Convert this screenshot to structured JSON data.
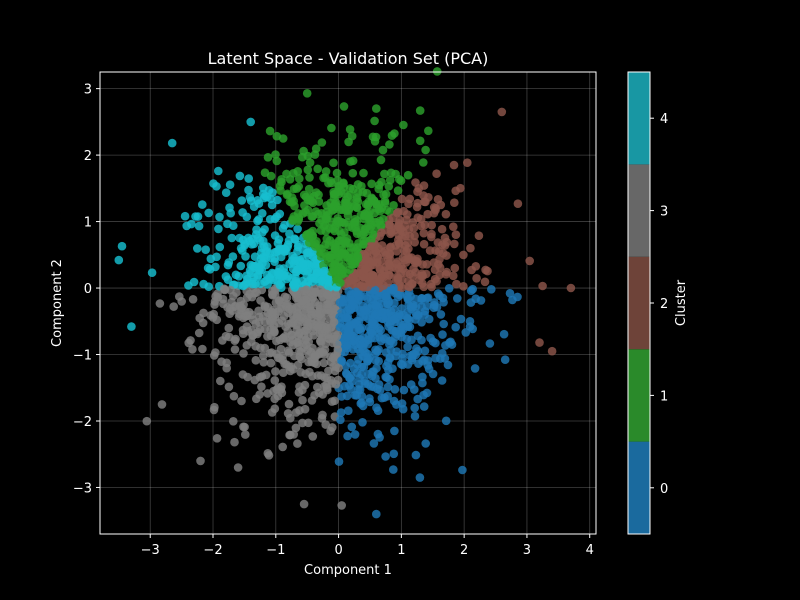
{
  "chart_data": {
    "type": "scatter",
    "title": "Latent Space - Validation Set (PCA)",
    "xlabel": "Component 1",
    "ylabel": "Component 2",
    "xlim": [
      -3.8,
      4.1
    ],
    "ylim": [
      -3.7,
      3.25
    ],
    "xticks": [
      -3,
      -2,
      -1,
      0,
      1,
      2,
      3,
      4
    ],
    "yticks": [
      -3,
      -2,
      -1,
      0,
      1,
      2,
      3
    ],
    "xtick_labels": [
      "−3",
      "−2",
      "−1",
      "0",
      "1",
      "2",
      "3",
      "4"
    ],
    "ytick_labels": [
      "−3",
      "−2",
      "−1",
      "0",
      "1",
      "2",
      "3"
    ],
    "grid": true,
    "colorbar": {
      "label": "Cluster",
      "ticks": [
        "0",
        "1",
        "2",
        "3",
        "4"
      ],
      "colors": [
        "#1a6a9e",
        "#2a8a2a",
        "#6e4339",
        "#676767",
        "#1897a3"
      ]
    },
    "series": [
      {
        "cluster": 0,
        "color": "#1f77b4",
        "center": [
          0.85,
          -1.05
        ],
        "angle_range_deg": [
          -90,
          0
        ]
      },
      {
        "cluster": 1,
        "color": "#2ca02c",
        "center": [
          0.0,
          1.35
        ],
        "angle_range_deg": [
          54,
          126
        ]
      },
      {
        "cluster": 2,
        "color": "#8c564b",
        "center": [
          1.45,
          0.75
        ],
        "angle_range_deg": [
          -25,
          54
        ]
      },
      {
        "cluster": 3,
        "color": "#7f7f7f",
        "center": [
          -0.85,
          -1.05
        ],
        "angle_range_deg": [
          180,
          270
        ]
      },
      {
        "cluster": 4,
        "color": "#17becf",
        "center": [
          -1.45,
          0.75
        ],
        "angle_range_deg": [
          126,
          205
        ]
      }
    ],
    "marked_points": [
      {
        "x": -3.45,
        "y": 0.63,
        "cluster": 4
      },
      {
        "x": -3.5,
        "y": 0.42,
        "cluster": 4
      },
      {
        "x": -3.3,
        "y": -0.58,
        "cluster": 4
      },
      {
        "x": -2.65,
        "y": 2.18,
        "cluster": 4
      },
      {
        "x": -1.4,
        "y": 2.5,
        "cluster": 4
      },
      {
        "x": -0.5,
        "y": 2.93,
        "cluster": 1
      },
      {
        "x": 0.6,
        "y": 2.7,
        "cluster": 1
      },
      {
        "x": 1.3,
        "y": 2.67,
        "cluster": 1
      },
      {
        "x": 2.6,
        "y": 2.65,
        "cluster": 2
      },
      {
        "x": 3.7,
        "y": 0.0,
        "cluster": 2
      },
      {
        "x": 3.4,
        "y": -0.95,
        "cluster": 2
      },
      {
        "x": 3.2,
        "y": -0.82,
        "cluster": 2
      },
      {
        "x": 3.25,
        "y": 0.03,
        "cluster": 2
      },
      {
        "x": 0.6,
        "y": -3.4,
        "cluster": 0
      },
      {
        "x": -0.55,
        "y": -3.25,
        "cluster": 3
      },
      {
        "x": 0.05,
        "y": -3.27,
        "cluster": 3
      },
      {
        "x": -2.2,
        "y": -2.6,
        "cluster": 3
      },
      {
        "x": -1.6,
        "y": -2.7,
        "cluster": 3
      }
    ]
  }
}
